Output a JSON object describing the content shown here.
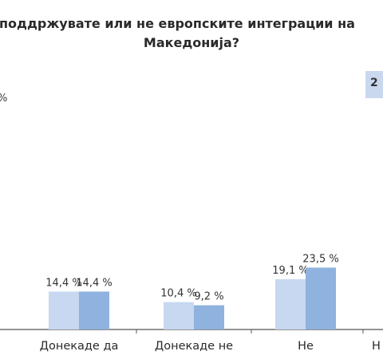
{
  "title_line1": "поддржувате или не европските интеграции на",
  "title_line2": "Македонија?",
  "left_clip_text": "%",
  "legend_clip_text": "2",
  "colors": {
    "series1": "#c7d8f0",
    "series2": "#8fb2de",
    "axis": "#555555"
  },
  "chart_data": {
    "type": "bar",
    "categories": [
      "Донекаде да",
      "Донекаде не",
      "Не",
      "Н"
    ],
    "series": [
      {
        "values": [
          14.4,
          10.4,
          19.1,
          null
        ],
        "labels": [
          "14,4 %",
          "10,4 %",
          "19,1 %",
          ""
        ]
      },
      {
        "values": [
          14.4,
          9.2,
          23.5,
          null
        ],
        "labels": [
          "14,4 %",
          "9,2 %",
          "23,5 %",
          ""
        ]
      }
    ],
    "title": "поддржувате или не европските интеграции на Македонија?",
    "ylim": [
      0,
      40
    ]
  }
}
